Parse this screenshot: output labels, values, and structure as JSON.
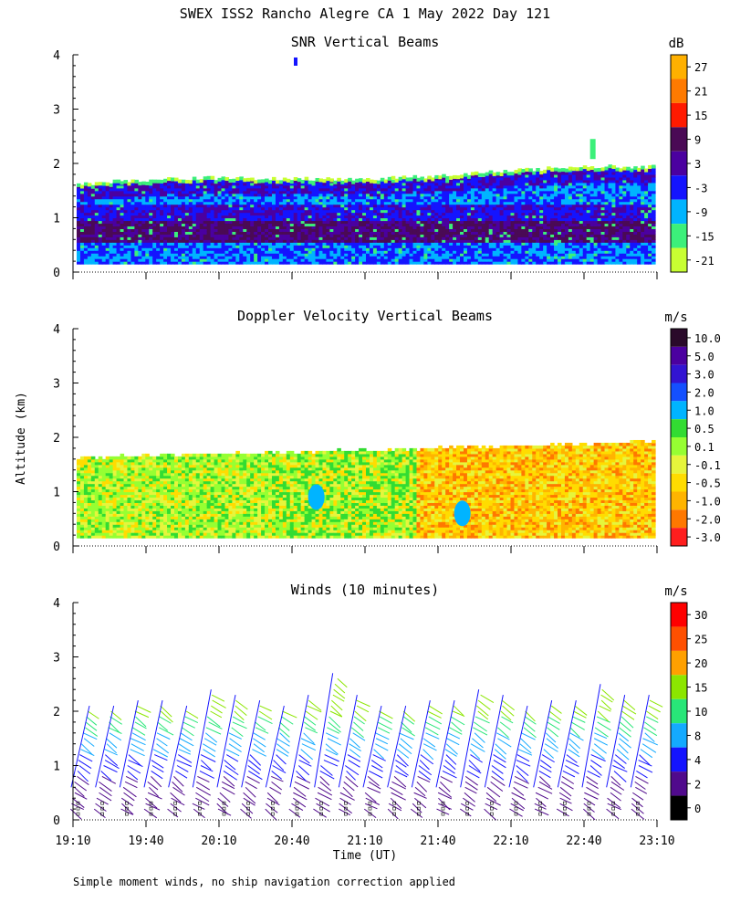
{
  "title": "SWEX ISS2 Rancho Alegre CA   1 May 2022 Day 121",
  "xlabel": "Time (UT)",
  "ylabel": "Altitude (km)",
  "footnote": "Simple moment winds, no ship navigation correction applied",
  "x_ticks": [
    "19:10",
    "19:40",
    "20:10",
    "20:40",
    "21:10",
    "21:40",
    "22:10",
    "22:40",
    "23:10"
  ],
  "y_ticks": [
    "0",
    "1",
    "2",
    "3",
    "4"
  ],
  "chart_data": [
    {
      "type": "heatmap",
      "title": "SNR Vertical Beams",
      "xlim": [
        "19:10",
        "23:10"
      ],
      "ylim": [
        0,
        4
      ],
      "colorbar": {
        "unit": "dB",
        "labels": [
          "27",
          "21",
          "15",
          "9",
          "3",
          "-3",
          "-9",
          "-15",
          "-21"
        ],
        "colors": [
          "#ffb000",
          "#ff7a00",
          "#ff1a00",
          "#4a0a55",
          "#4b00a0",
          "#1414ff",
          "#00b4ff",
          "#3cf07a",
          "#c8ff32"
        ]
      },
      "layers": [
        {
          "from_km": 0.15,
          "to_km": 0.55,
          "value": "-3 to 3"
        },
        {
          "from_km": 0.55,
          "to_km": 1.0,
          "value": "3 to 9"
        },
        {
          "from_km": 1.0,
          "to_km": 1.3,
          "value": "-3 to 3"
        },
        {
          "from_km": 1.3,
          "to_km": 1.6,
          "value": "-9 to -3"
        },
        {
          "from_km": 1.6,
          "to_km": 1.9,
          "value": "-9 to 3"
        },
        {
          "from_km": 1.9,
          "to_km": 2.0,
          "value": "-21 to -15"
        }
      ]
    },
    {
      "type": "heatmap",
      "title": "Doppler Velocity Vertical Beams",
      "xlim": [
        "19:10",
        "23:10"
      ],
      "ylim": [
        0,
        4
      ],
      "colorbar": {
        "unit": "m/s",
        "labels": [
          "10.0",
          "5.0",
          "3.0",
          "2.0",
          "1.0",
          "0.5",
          "0.1",
          "-0.1",
          "-0.5",
          "-1.0",
          "-2.0",
          "-3.0"
        ],
        "colors": [
          "#2a0a2a",
          "#4b00a0",
          "#3214d2",
          "#1450ff",
          "#00b4ff",
          "#32dc32",
          "#96ff32",
          "#e6f53c",
          "#ffdc00",
          "#ffb400",
          "#ff7800",
          "#ff1e1e"
        ]
      },
      "layers": [
        {
          "from_time": "19:10",
          "to_time": "21:00",
          "value": "0.1 to -0.5"
        },
        {
          "from_time": "21:00",
          "to_time": "21:40",
          "value": "0.5 to 1.0"
        },
        {
          "from_time": "21:40",
          "to_time": "23:10",
          "value": "-0.5 to -2.0"
        }
      ]
    },
    {
      "type": "barbs",
      "title": "Winds (10 minutes)",
      "xlim": [
        "19:10",
        "23:10"
      ],
      "ylim": [
        0,
        4
      ],
      "colorbar": {
        "unit": "m/s",
        "labels": [
          "30",
          "25",
          "20",
          "15",
          "10",
          "8",
          "4",
          "2",
          "0"
        ],
        "colors": [
          "#ff0000",
          "#ff5000",
          "#ffa000",
          "#8ce600",
          "#28e678",
          "#14aaff",
          "#1414ff",
          "#500a8c",
          "#000000"
        ]
      },
      "profiles": [
        {
          "time": "19:10",
          "top_km": 2.1
        },
        {
          "time": "19:20",
          "top_km": 2.1
        },
        {
          "time": "19:30",
          "top_km": 2.2
        },
        {
          "time": "19:40",
          "top_km": 2.2
        },
        {
          "time": "19:50",
          "top_km": 2.1
        },
        {
          "time": "20:00",
          "top_km": 2.4
        },
        {
          "time": "20:10",
          "top_km": 2.3
        },
        {
          "time": "20:20",
          "top_km": 2.2
        },
        {
          "time": "20:30",
          "top_km": 2.1
        },
        {
          "time": "20:40",
          "top_km": 2.3
        },
        {
          "time": "20:50",
          "top_km": 2.7
        },
        {
          "time": "21:00",
          "top_km": 2.3
        },
        {
          "time": "21:10",
          "top_km": 2.1
        },
        {
          "time": "21:20",
          "top_km": 2.1
        },
        {
          "time": "21:30",
          "top_km": 2.2
        },
        {
          "time": "21:40",
          "top_km": 2.2
        },
        {
          "time": "21:50",
          "top_km": 2.4
        },
        {
          "time": "22:00",
          "top_km": 2.3
        },
        {
          "time": "22:10",
          "top_km": 2.1
        },
        {
          "time": "22:20",
          "top_km": 2.2
        },
        {
          "time": "22:30",
          "top_km": 2.2
        },
        {
          "time": "22:40",
          "top_km": 2.5
        },
        {
          "time": "22:50",
          "top_km": 2.3
        },
        {
          "time": "23:00",
          "top_km": 2.3
        }
      ]
    }
  ]
}
